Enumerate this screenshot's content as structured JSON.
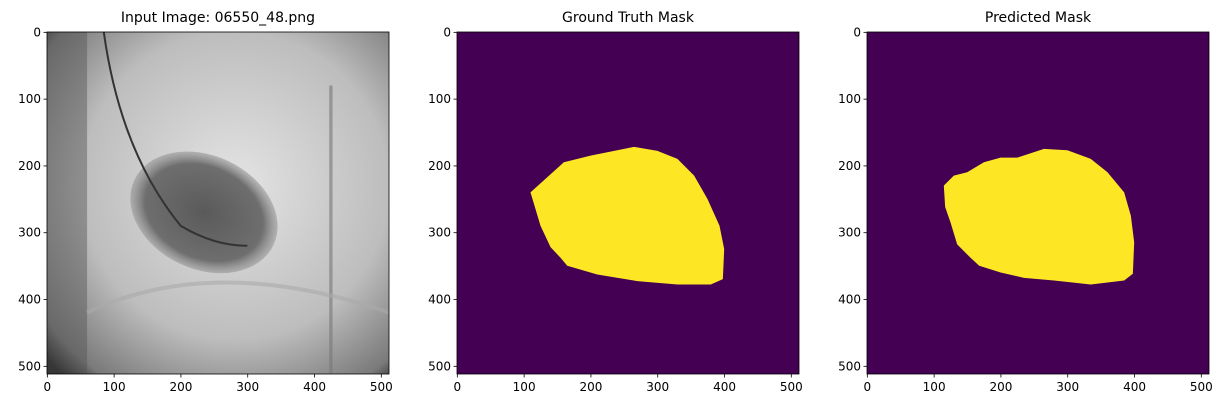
{
  "chart_data": [
    {
      "type": "image",
      "title": "Input Image: 06550_48.png",
      "xlim": [
        -0.5,
        511.5
      ],
      "ylim": [
        511.5,
        -0.5
      ],
      "xticks": [
        0,
        100,
        200,
        300,
        400,
        500
      ],
      "yticks": [
        0,
        100,
        200,
        300,
        400,
        500
      ]
    },
    {
      "type": "mask",
      "title": "Ground Truth Mask",
      "colors": [
        "#440154",
        "#fde725"
      ],
      "xlim": [
        -0.5,
        511.5
      ],
      "ylim": [
        511.5,
        -0.5
      ],
      "xticks": [
        0,
        100,
        200,
        300,
        400,
        500
      ],
      "yticks": [
        0,
        100,
        200,
        300,
        400,
        500
      ]
    },
    {
      "type": "mask",
      "title": "Predicted Mask",
      "colors": [
        "#440154",
        "#fde725"
      ],
      "xlim": [
        -0.5,
        511.5
      ],
      "ylim": [
        511.5,
        -0.5
      ],
      "xticks": [
        0,
        100,
        200,
        300,
        400,
        500
      ],
      "yticks": [
        0,
        100,
        200,
        300,
        400,
        500
      ]
    }
  ]
}
